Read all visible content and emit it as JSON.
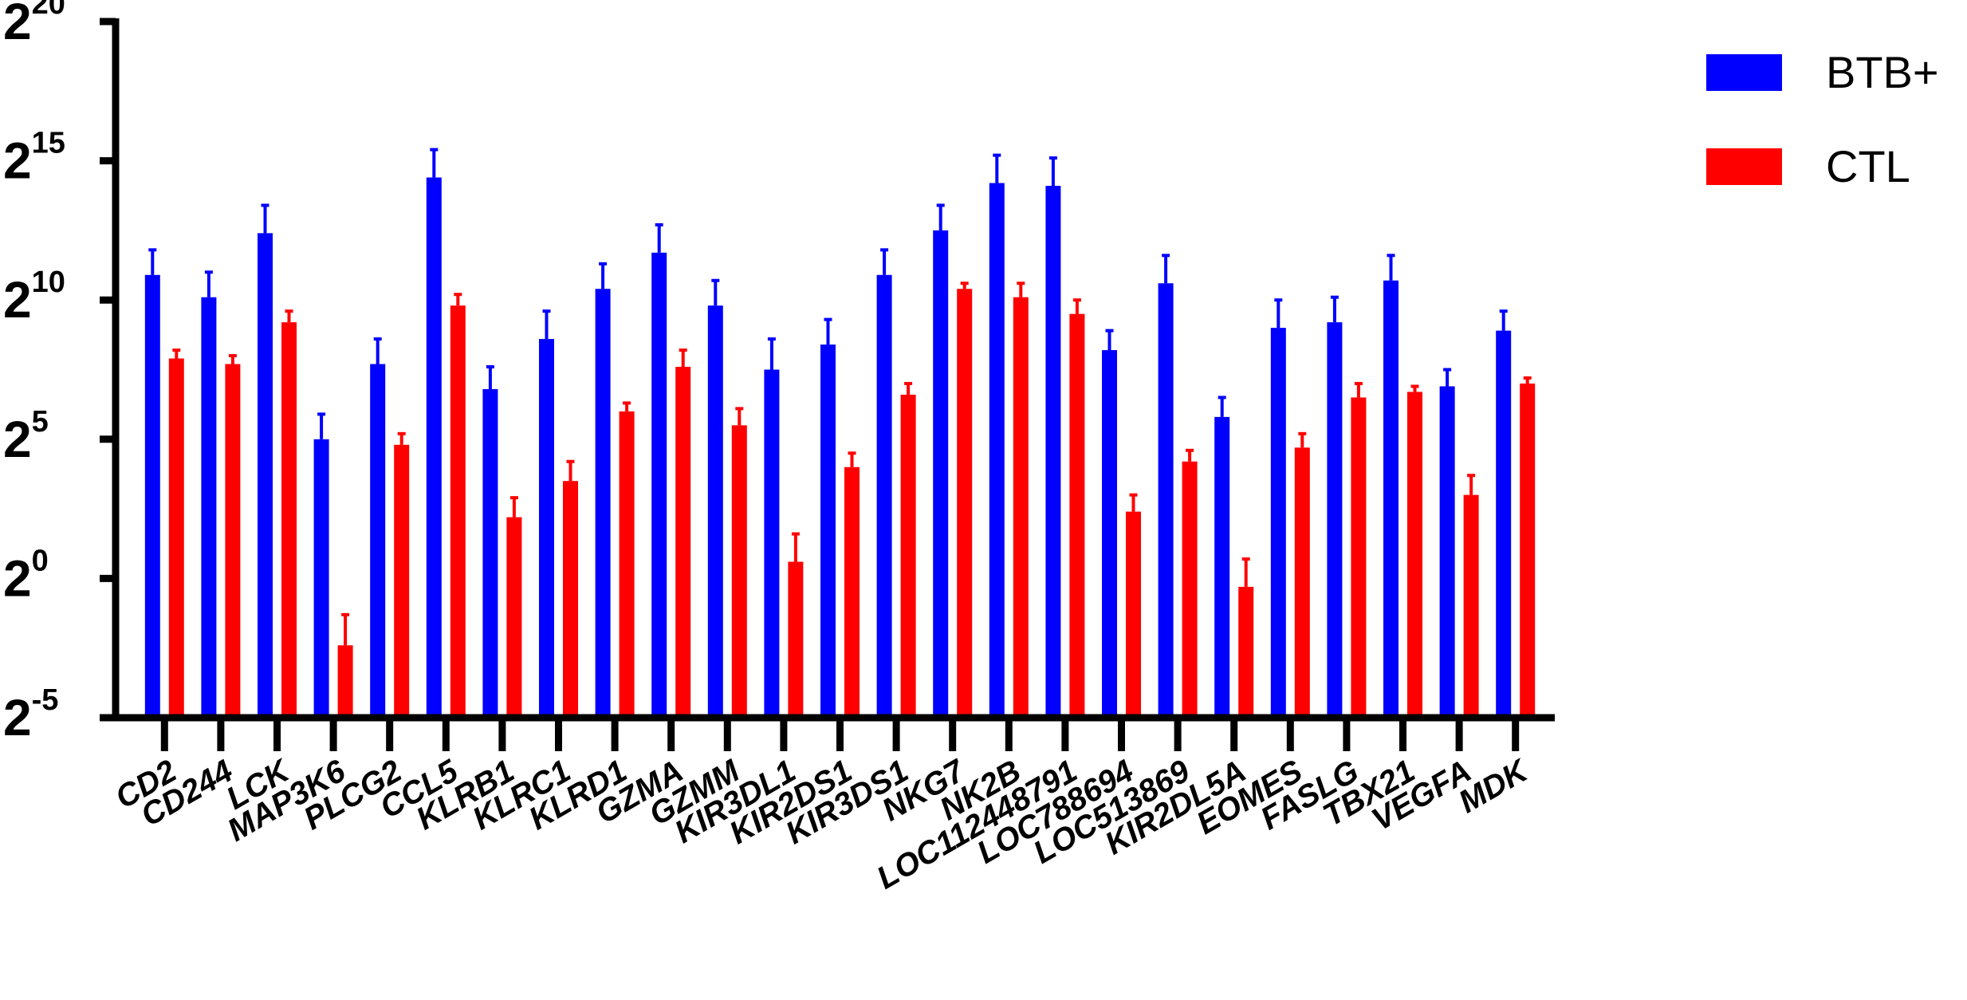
{
  "chart_data": {
    "type": "bar",
    "y_scale": "log2",
    "ylim_exponent": [
      -5,
      20
    ],
    "yticks": [
      {
        "base": "2",
        "exp": "-5",
        "value_exp": -5
      },
      {
        "base": "2",
        "exp": "0",
        "value_exp": 0
      },
      {
        "base": "2",
        "exp": "5",
        "value_exp": 5
      },
      {
        "base": "2",
        "exp": "10",
        "value_exp": 10
      },
      {
        "base": "2",
        "exp": "15",
        "value_exp": 15
      },
      {
        "base": "2",
        "exp": "20",
        "value_exp": 20
      }
    ],
    "categories": [
      "CD2",
      "CD244",
      "LCK",
      "MAP3K6",
      "PLCG2",
      "CCL5",
      "KLRB1",
      "KLRC1",
      "KLRD1",
      "GZMA",
      "GZMM",
      "KIR3DL1",
      "KIR2DS1",
      "KIR3DS1",
      "NKG7",
      "NK2B",
      "LOC112448791",
      "LOC788694",
      "LOC513869",
      "KIR2DL5A",
      "EOMES",
      "FASLG",
      "TBX21",
      "VEGFA",
      "MDK"
    ],
    "series": [
      {
        "name": "BTB+",
        "color": "#0000ff",
        "values_log2": [
          10.9,
          10.1,
          12.4,
          5.0,
          7.7,
          14.4,
          6.8,
          8.6,
          10.4,
          11.7,
          9.8,
          7.5,
          8.4,
          10.9,
          12.5,
          14.2,
          14.1,
          8.2,
          10.6,
          5.8,
          9.0,
          9.2,
          10.7,
          6.9,
          8.9
        ],
        "error_log2": [
          0.9,
          0.9,
          1.0,
          0.9,
          0.9,
          1.0,
          0.8,
          1.0,
          0.9,
          1.0,
          0.9,
          1.1,
          0.9,
          0.9,
          0.9,
          1.0,
          1.0,
          0.7,
          1.0,
          0.7,
          1.0,
          0.9,
          0.9,
          0.6,
          0.7
        ]
      },
      {
        "name": "CTL",
        "color": "#ff0000",
        "values_log2": [
          7.9,
          7.7,
          9.2,
          -2.4,
          4.8,
          9.8,
          2.2,
          3.5,
          6.0,
          7.6,
          5.5,
          0.6,
          4.0,
          6.6,
          10.4,
          10.1,
          9.5,
          2.4,
          4.2,
          -0.3,
          4.7,
          6.5,
          6.7,
          3.0,
          7.0
        ],
        "error_log2": [
          0.3,
          0.3,
          0.4,
          1.1,
          0.4,
          0.4,
          0.7,
          0.7,
          0.3,
          0.6,
          0.6,
          1.0,
          0.5,
          0.4,
          0.2,
          0.5,
          0.5,
          0.6,
          0.4,
          1.0,
          0.5,
          0.5,
          0.2,
          0.7,
          0.2
        ]
      }
    ],
    "legend_position": "top-right",
    "grid": false
  }
}
